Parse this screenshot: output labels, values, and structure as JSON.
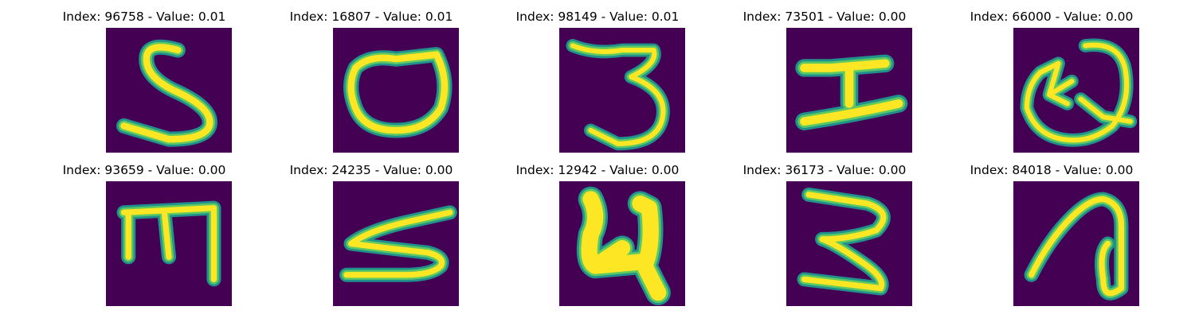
{
  "colors": {
    "background": "#440154",
    "stroke_edge": "#21918c",
    "stroke_mid": "#5ec962",
    "stroke_core": "#fde725"
  },
  "panels": [
    {
      "title": "Index: 96758 - Value: 0.01",
      "glyph": "5"
    },
    {
      "title": "Index: 16807 - Value: 0.01",
      "glyph": "0"
    },
    {
      "title": "Index: 98149 - Value: 0.01",
      "glyph": "3"
    },
    {
      "title": "Index: 73501 - Value: 0.00",
      "glyph": "I"
    },
    {
      "title": "Index: 66000 - Value: 0.00",
      "glyph": "Q"
    },
    {
      "title": "Index: 93659 - Value: 0.00",
      "glyph": "m"
    },
    {
      "title": "Index: 24235 - Value: 0.00",
      "glyph": "5"
    },
    {
      "title": "Index: 12942 - Value: 0.00",
      "glyph": "4"
    },
    {
      "title": "Index: 36173 - Value: 0.00",
      "glyph": "3"
    },
    {
      "title": "Index: 84018 - Value: 0.00",
      "glyph": "a"
    }
  ]
}
